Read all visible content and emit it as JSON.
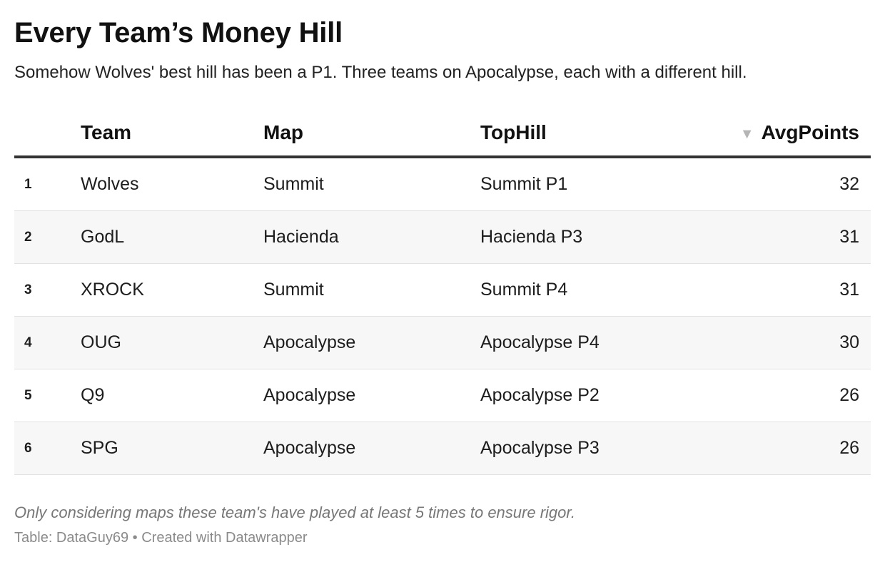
{
  "header": {
    "title": "Every Team’s Money Hill",
    "subtitle": "Somehow Wolves' best hill has been a P1. Three teams on Apocalypse, each with a different hill."
  },
  "chart_data": {
    "type": "table",
    "columns": [
      "",
      "Team",
      "Map",
      "TopHill",
      "AvgPoints"
    ],
    "sorted_by": "AvgPoints",
    "sort_direction": "descending",
    "rows": [
      {
        "rank": "1",
        "team": "Wolves",
        "map": "Summit",
        "tophill": "Summit P1",
        "avgpoints": "32"
      },
      {
        "rank": "2",
        "team": "GodL",
        "map": "Hacienda",
        "tophill": "Hacienda P3",
        "avgpoints": "31"
      },
      {
        "rank": "3",
        "team": "XROCK",
        "map": "Summit",
        "tophill": "Summit P4",
        "avgpoints": "31"
      },
      {
        "rank": "4",
        "team": "OUG",
        "map": "Apocalypse",
        "tophill": "Apocalypse P4",
        "avgpoints": "30"
      },
      {
        "rank": "5",
        "team": "Q9",
        "map": "Apocalypse",
        "tophill": "Apocalypse P2",
        "avgpoints": "26"
      },
      {
        "rank": "6",
        "team": "SPG",
        "map": "Apocalypse",
        "tophill": "Apocalypse P3",
        "avgpoints": "26"
      }
    ]
  },
  "footer": {
    "notes": "Only considering maps these team's have played at least 5 times to ensure rigor.",
    "source": "Table: DataGuy69 • Created with Datawrapper"
  },
  "colors": {
    "header_rule": "#333333",
    "row_shade": "#f7f7f7",
    "sort_arrow": "#b5b5b5"
  },
  "icons": {
    "sort": "sort-descending-icon"
  }
}
